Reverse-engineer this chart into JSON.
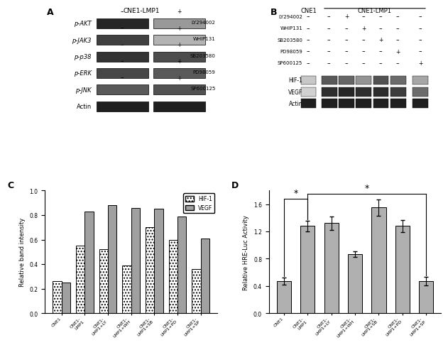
{
  "panel_C": {
    "categories": [
      "CNE1",
      "CNE1-LMP1",
      "CNE1-LMP1+LY",
      "CNE1-LMP1+WH",
      "CNE1-LMP1+SB",
      "CNE1-LMP1+PD",
      "CNE1-LMP1+SP"
    ],
    "HIF1_values": [
      0.26,
      0.55,
      0.52,
      0.39,
      0.7,
      0.6,
      0.36
    ],
    "VEGF_values": [
      0.25,
      0.83,
      0.88,
      0.86,
      0.85,
      0.79,
      0.61
    ],
    "ylabel": "Relative band intensity",
    "ylim": [
      0,
      1.0
    ],
    "yticks": [
      0,
      0.2,
      0.4,
      0.6,
      0.8,
      1.0
    ]
  },
  "panel_D": {
    "categories": [
      "CNE1",
      "CNE1-LMP1",
      "CNE1-LMP1+LY",
      "CNE1-LMP1+WH",
      "CNE1-LMP1+SB",
      "CNE1-LMP1+PD",
      "CNE1-LMP1+SP"
    ],
    "values": [
      0.47,
      1.28,
      1.32,
      0.87,
      1.55,
      1.28,
      0.47
    ],
    "errors": [
      0.05,
      0.08,
      0.1,
      0.04,
      0.12,
      0.09,
      0.06
    ],
    "ylabel": "Relative HRE-Luc Activity",
    "ylim": [
      0,
      1.8
    ],
    "yticks": [
      0,
      0.4,
      0.8,
      1.2,
      1.6
    ],
    "bar_color": "#b0b0b0"
  },
  "blot_A": {
    "rows": [
      "p-AKT",
      "p-JAK3",
      "p-p38",
      "p-ERK",
      "p-JNK",
      "Actin"
    ],
    "inhibitors": [
      "LY294002",
      "WHIP131",
      "SB203580",
      "PD98059",
      "SP600125",
      ""
    ],
    "band_intensities_left": [
      0.85,
      0.75,
      0.8,
      0.72,
      0.65,
      0.88
    ],
    "band_intensities_right": [
      0.4,
      0.3,
      0.7,
      0.65,
      0.68,
      0.88
    ]
  },
  "blot_B": {
    "rows": [
      "LY294002",
      "WHIP131",
      "SB203580",
      "PD98059",
      "SP600125",
      "HIF-1",
      "VEGF",
      "Actin"
    ],
    "inhib_patterns": [
      [
        "--",
        "--",
        "+",
        "--",
        "--",
        "--",
        "--"
      ],
      [
        "--",
        "--",
        "--",
        "+",
        "--",
        "--",
        "--"
      ],
      [
        "--",
        "--",
        "--",
        "--",
        "+",
        "--",
        "--"
      ],
      [
        "--",
        "--",
        "--",
        "--",
        "--",
        "+",
        "--"
      ],
      [
        "--",
        "--",
        "--",
        "--",
        "--",
        "--",
        "+"
      ]
    ],
    "hif1_bands": [
      0.22,
      0.65,
      0.6,
      0.42,
      0.68,
      0.58,
      0.35
    ],
    "vegf_bands": [
      0.18,
      0.82,
      0.85,
      0.82,
      0.83,
      0.76,
      0.58
    ],
    "actin_bands": [
      0.88,
      0.88,
      0.88,
      0.88,
      0.88,
      0.88,
      0.88
    ]
  }
}
